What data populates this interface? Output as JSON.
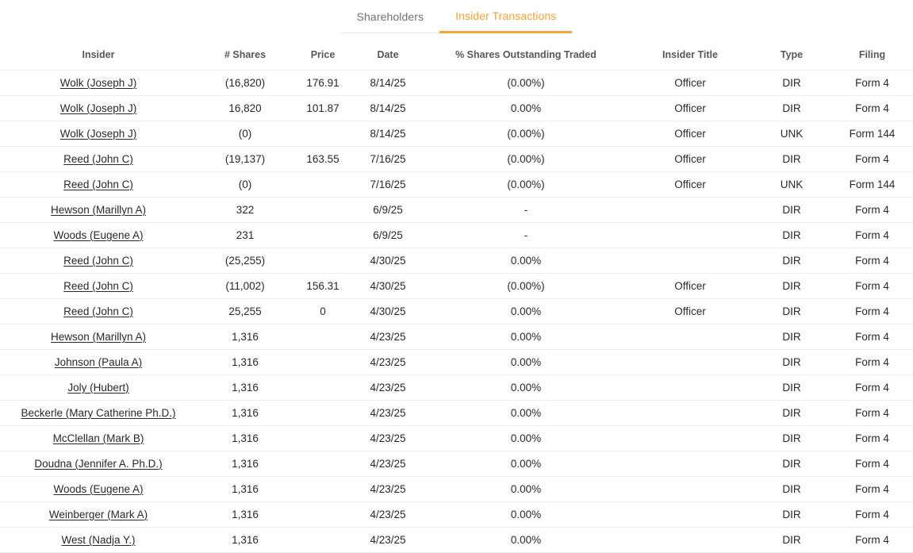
{
  "colors": {
    "accent_orange": "#f2a33c",
    "negative_red": "#e5484d"
  },
  "tabs": [
    {
      "label": "Shareholders",
      "active": false
    },
    {
      "label": "Insider Transactions",
      "active": true
    }
  ],
  "table": {
    "columns": [
      "Insider",
      "# Shares",
      "Price",
      "Date",
      "% Shares Outstanding Traded",
      "Insider Title",
      "Type",
      "Filing"
    ],
    "rows": [
      {
        "insider": "Wolk (Joseph J)",
        "shares": "(16,820)",
        "shares_negative": true,
        "price": "176.91",
        "date": "8/14/25",
        "pct": "(0.00%)",
        "pct_negative": true,
        "title": "Officer",
        "type": "DIR",
        "filing": "Form 4"
      },
      {
        "insider": "Wolk (Joseph J)",
        "shares": "16,820",
        "shares_negative": false,
        "price": "101.87",
        "date": "8/14/25",
        "pct": "0.00%",
        "pct_negative": false,
        "title": "Officer",
        "type": "DIR",
        "filing": "Form 4"
      },
      {
        "insider": "Wolk (Joseph J)",
        "shares": "(0)",
        "shares_negative": false,
        "price": "",
        "date": "8/14/25",
        "pct": "(0.00%)",
        "pct_negative": false,
        "title": "Officer",
        "type": "UNK",
        "filing": "Form 144"
      },
      {
        "insider": "Reed (John C)",
        "shares": "(19,137)",
        "shares_negative": true,
        "price": "163.55",
        "date": "7/16/25",
        "pct": "(0.00%)",
        "pct_negative": true,
        "title": "Officer",
        "type": "DIR",
        "filing": "Form 4"
      },
      {
        "insider": "Reed (John C)",
        "shares": "(0)",
        "shares_negative": false,
        "price": "",
        "date": "7/16/25",
        "pct": "(0.00%)",
        "pct_negative": false,
        "title": "Officer",
        "type": "UNK",
        "filing": "Form 144"
      },
      {
        "insider": "Hewson (Marillyn A)",
        "shares": "322",
        "shares_negative": false,
        "price": "",
        "date": "6/9/25",
        "pct": "-",
        "pct_negative": false,
        "title": "",
        "type": "DIR",
        "filing": "Form 4"
      },
      {
        "insider": "Woods (Eugene A)",
        "shares": "231",
        "shares_negative": false,
        "price": "",
        "date": "6/9/25",
        "pct": "-",
        "pct_negative": false,
        "title": "",
        "type": "DIR",
        "filing": "Form 4"
      },
      {
        "insider": "Reed (John C)",
        "shares": "(25,255)",
        "shares_negative": true,
        "price": "",
        "date": "4/30/25",
        "pct": "0.00%",
        "pct_negative": false,
        "title": "",
        "type": "DIR",
        "filing": "Form 4"
      },
      {
        "insider": "Reed (John C)",
        "shares": "(11,002)",
        "shares_negative": true,
        "price": "156.31",
        "date": "4/30/25",
        "pct": "(0.00%)",
        "pct_negative": true,
        "title": "Officer",
        "type": "DIR",
        "filing": "Form 4"
      },
      {
        "insider": "Reed (John C)",
        "shares": "25,255",
        "shares_negative": false,
        "price": "0",
        "date": "4/30/25",
        "pct": "0.00%",
        "pct_negative": false,
        "title": "Officer",
        "type": "DIR",
        "filing": "Form 4"
      },
      {
        "insider": "Hewson (Marillyn A)",
        "shares": "1,316",
        "shares_negative": false,
        "price": "",
        "date": "4/23/25",
        "pct": "0.00%",
        "pct_negative": false,
        "title": "",
        "type": "DIR",
        "filing": "Form 4"
      },
      {
        "insider": "Johnson (Paula A)",
        "shares": "1,316",
        "shares_negative": false,
        "price": "",
        "date": "4/23/25",
        "pct": "0.00%",
        "pct_negative": false,
        "title": "",
        "type": "DIR",
        "filing": "Form 4"
      },
      {
        "insider": "Joly (Hubert)",
        "shares": "1,316",
        "shares_negative": false,
        "price": "",
        "date": "4/23/25",
        "pct": "0.00%",
        "pct_negative": false,
        "title": "",
        "type": "DIR",
        "filing": "Form 4"
      },
      {
        "insider": "Beckerle (Mary Catherine Ph.D.)",
        "shares": "1,316",
        "shares_negative": false,
        "price": "",
        "date": "4/23/25",
        "pct": "0.00%",
        "pct_negative": false,
        "title": "",
        "type": "DIR",
        "filing": "Form 4"
      },
      {
        "insider": "McClellan (Mark B)",
        "shares": "1,316",
        "shares_negative": false,
        "price": "",
        "date": "4/23/25",
        "pct": "0.00%",
        "pct_negative": false,
        "title": "",
        "type": "DIR",
        "filing": "Form 4"
      },
      {
        "insider": "Doudna (Jennifer A. Ph.D.)",
        "shares": "1,316",
        "shares_negative": false,
        "price": "",
        "date": "4/23/25",
        "pct": "0.00%",
        "pct_negative": false,
        "title": "",
        "type": "DIR",
        "filing": "Form 4"
      },
      {
        "insider": "Woods (Eugene A)",
        "shares": "1,316",
        "shares_negative": false,
        "price": "",
        "date": "4/23/25",
        "pct": "0.00%",
        "pct_negative": false,
        "title": "",
        "type": "DIR",
        "filing": "Form 4"
      },
      {
        "insider": "Weinberger (Mark A)",
        "shares": "1,316",
        "shares_negative": false,
        "price": "",
        "date": "4/23/25",
        "pct": "0.00%",
        "pct_negative": false,
        "title": "",
        "type": "DIR",
        "filing": "Form 4"
      },
      {
        "insider": "West (Nadja Y.)",
        "shares": "1,316",
        "shares_negative": false,
        "price": "",
        "date": "4/23/25",
        "pct": "0.00%",
        "pct_negative": false,
        "title": "",
        "type": "DIR",
        "filing": "Form 4"
      }
    ]
  }
}
